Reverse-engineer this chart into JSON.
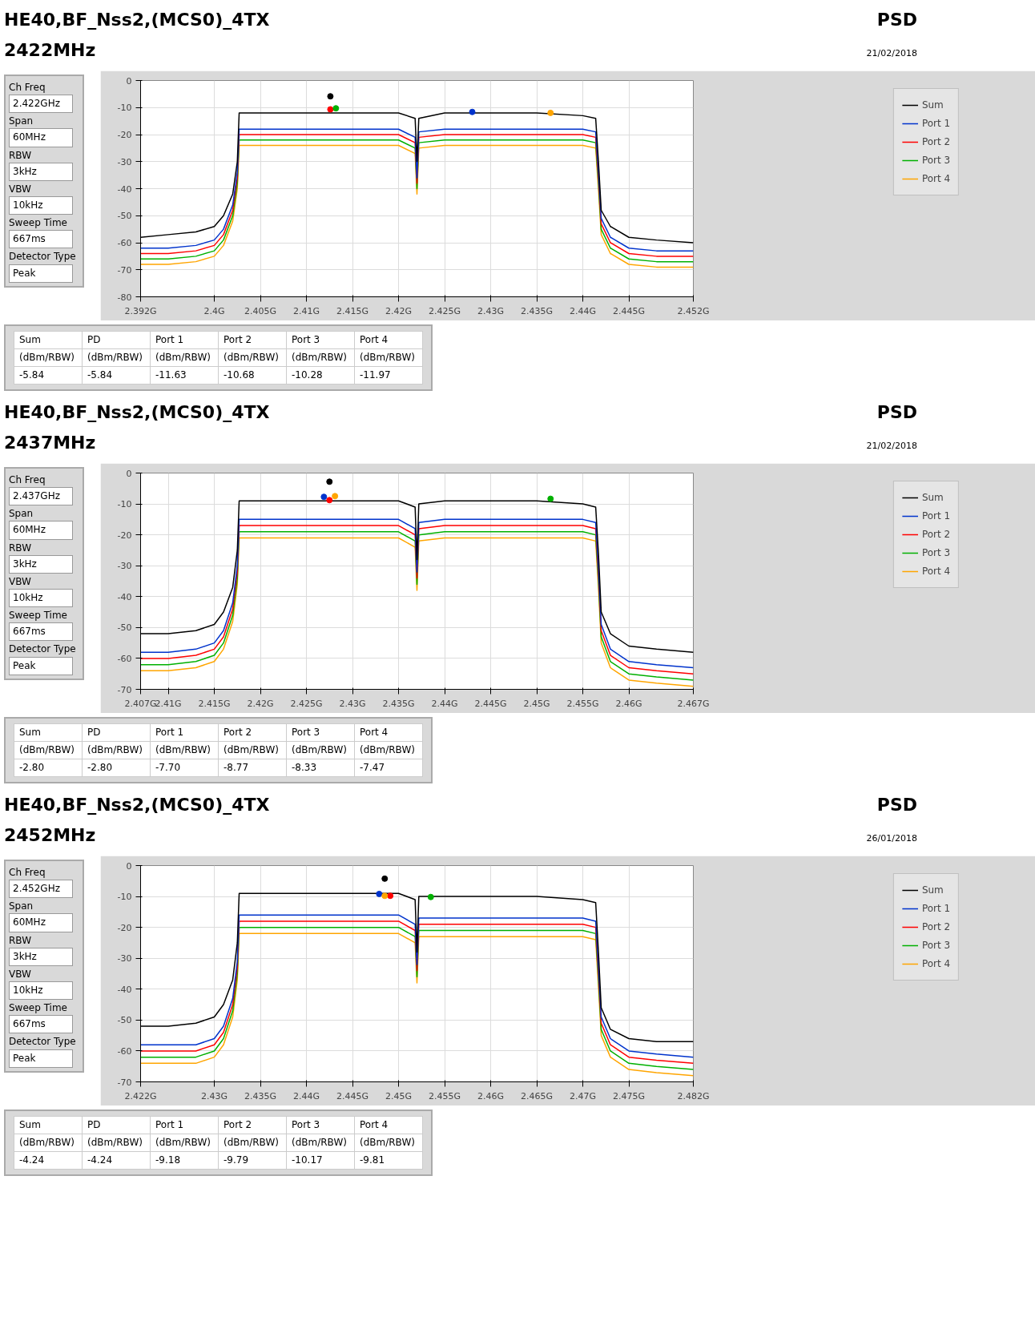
{
  "chart_data": [
    {
      "type": "line",
      "title": "HE40,BF_Nss2,(MCS0)_4TX",
      "subtitle": "2422MHz",
      "annotations": [
        "PSD",
        "21/02/2018",
        "Ch Freq",
        "2.422GHz",
        "Span",
        "60MHz",
        "RBW",
        "3kHz",
        "VBW",
        "10kHz",
        "Sweep Time",
        "667ms",
        "Detector Type",
        "Peak",
        "Sum",
        "PD",
        "Port 1",
        "Port 2",
        "Port 3",
        "Port 4",
        "(dBm/RBW)",
        "(dBm/RBW)",
        "(dBm/RBW)",
        "(dBm/RBW)",
        "(dBm/RBW)",
        "(dBm/RBW)",
        "-5.84",
        "-5.84",
        "-11.63",
        "-10.68",
        "-10.28",
        "-11.97"
      ],
      "xlim": [
        2.392,
        2.452
      ],
      "ylim": [
        -80,
        0
      ],
      "xticks": [
        {
          "value": 2.392,
          "label": "2.392G"
        },
        {
          "value": 2.4,
          "label": "2.4G"
        },
        {
          "value": 2.405,
          "label": "2.405G"
        },
        {
          "value": 2.41,
          "label": "2.41G"
        },
        {
          "value": 2.415,
          "label": "2.415G"
        },
        {
          "value": 2.42,
          "label": "2.42G"
        },
        {
          "value": 2.425,
          "label": "2.425G"
        },
        {
          "value": 2.43,
          "label": "2.43G"
        },
        {
          "value": 2.435,
          "label": "2.435G"
        },
        {
          "value": 2.44,
          "label": "2.44G"
        },
        {
          "value": 2.445,
          "label": "2.445G"
        },
        {
          "value": 2.452,
          "label": "2.452G"
        }
      ],
      "yticks": [
        0,
        -10,
        -20,
        -30,
        -40,
        -50,
        -60,
        -70,
        -80
      ],
      "grid": true,
      "legend": "right",
      "x": [
        2.392,
        2.395,
        2.398,
        2.4,
        2.401,
        2.402,
        2.4025,
        2.4027,
        2.405,
        2.41,
        2.415,
        2.42,
        2.4218,
        2.422,
        2.4222,
        2.425,
        2.43,
        2.435,
        2.44,
        2.4414,
        2.4417,
        2.442,
        2.443,
        2.445,
        2.448,
        2.452
      ],
      "series": [
        {
          "name": "Port 4",
          "color": "#ffa500",
          "values": [
            -68,
            -68,
            -67,
            -65,
            -61,
            -52,
            -40,
            -24,
            -24,
            -24,
            -24,
            -24,
            -27,
            -42,
            -25,
            -24,
            -24,
            -24,
            -24,
            -25,
            -40,
            -57,
            -64,
            -68,
            -69,
            -69
          ]
        },
        {
          "name": "Port 3",
          "color": "#00b000",
          "values": [
            -66,
            -66,
            -65,
            -63,
            -59,
            -50,
            -38,
            -22,
            -22,
            -22,
            -22,
            -22,
            -25,
            -40,
            -23,
            -22,
            -22,
            -22,
            -22,
            -23,
            -38,
            -55,
            -62,
            -66,
            -67,
            -67
          ]
        },
        {
          "name": "Port 2",
          "color": "#ff0000",
          "values": [
            -64,
            -64,
            -63,
            -61,
            -57,
            -48,
            -36,
            -20,
            -20,
            -20,
            -20,
            -20,
            -23,
            -38,
            -21,
            -20,
            -20,
            -20,
            -20,
            -21,
            -36,
            -53,
            -60,
            -64,
            -65,
            -65
          ]
        },
        {
          "name": "Port 1",
          "color": "#0033cc",
          "values": [
            -62,
            -62,
            -61,
            -59,
            -55,
            -46,
            -34,
            -18,
            -18,
            -18,
            -18,
            -18,
            -21,
            -36,
            -19,
            -18,
            -18,
            -18,
            -18,
            -19,
            -34,
            -51,
            -58,
            -62,
            -63,
            -63
          ]
        },
        {
          "name": "Sum",
          "color": "#000000",
          "values": [
            -58,
            -57,
            -56,
            -54,
            -50,
            -42,
            -30,
            -12,
            -12,
            -12,
            -12,
            -12,
            -14,
            -30,
            -14,
            -12,
            -12,
            -12,
            -13,
            -14,
            -30,
            -48,
            -54,
            -58,
            -59,
            -60
          ]
        },
        {
          "type": "scatter",
          "marker": "circle",
          "x": [
            2.4126,
            2.428,
            2.4126,
            2.4132,
            2.4365
          ],
          "values": [
            -5.84,
            -11.63,
            -10.68,
            -10.28,
            -11.97
          ],
          "colors": [
            "#000000",
            "#0033cc",
            "#ff0000",
            "#00b000",
            "#ffa500"
          ]
        }
      ]
    },
    {
      "type": "line",
      "title": "HE40,BF_Nss2,(MCS0)_4TX",
      "subtitle": "2437MHz",
      "annotations": [
        "PSD",
        "21/02/2018",
        "Ch Freq",
        "2.437GHz",
        "Span",
        "60MHz",
        "RBW",
        "3kHz",
        "VBW",
        "10kHz",
        "Sweep Time",
        "667ms",
        "Detector Type",
        "Peak",
        "Sum",
        "PD",
        "Port 1",
        "Port 2",
        "Port 3",
        "Port 4",
        "(dBm/RBW)",
        "(dBm/RBW)",
        "(dBm/RBW)",
        "(dBm/RBW)",
        "(dBm/RBW)",
        "(dBm/RBW)",
        "-2.80",
        "-2.80",
        "-7.70",
        "-8.77",
        "-8.33",
        "-7.47"
      ],
      "xlim": [
        2.407,
        2.467
      ],
      "ylim": [
        -70,
        0
      ],
      "xticks": [
        {
          "value": 2.407,
          "label": "2.407G"
        },
        {
          "value": 2.41,
          "label": "2.41G"
        },
        {
          "value": 2.415,
          "label": "2.415G"
        },
        {
          "value": 2.42,
          "label": "2.42G"
        },
        {
          "value": 2.425,
          "label": "2.425G"
        },
        {
          "value": 2.43,
          "label": "2.43G"
        },
        {
          "value": 2.435,
          "label": "2.435G"
        },
        {
          "value": 2.44,
          "label": "2.44G"
        },
        {
          "value": 2.445,
          "label": "2.445G"
        },
        {
          "value": 2.45,
          "label": "2.45G"
        },
        {
          "value": 2.455,
          "label": "2.455G"
        },
        {
          "value": 2.46,
          "label": "2.46G"
        },
        {
          "value": 2.467,
          "label": "2.467G"
        }
      ],
      "yticks": [
        0,
        -10,
        -20,
        -30,
        -40,
        -50,
        -60,
        -70
      ],
      "grid": true,
      "legend": "right",
      "x": [
        2.407,
        2.41,
        2.413,
        2.415,
        2.416,
        2.417,
        2.4175,
        2.4177,
        2.42,
        2.425,
        2.43,
        2.435,
        2.4368,
        2.437,
        2.4372,
        2.44,
        2.445,
        2.45,
        2.455,
        2.4564,
        2.4567,
        2.457,
        2.458,
        2.46,
        2.463,
        2.467
      ],
      "series": [
        {
          "name": "Port 4",
          "color": "#ffa500",
          "values": [
            -64,
            -64,
            -63,
            -61,
            -57,
            -48,
            -36,
            -21,
            -21,
            -21,
            -21,
            -21,
            -24,
            -38,
            -22,
            -21,
            -21,
            -21,
            -21,
            -22,
            -37,
            -55,
            -63,
            -67,
            -68,
            -69
          ]
        },
        {
          "name": "Port 3",
          "color": "#00b000",
          "values": [
            -62,
            -62,
            -61,
            -59,
            -55,
            -46,
            -34,
            -19,
            -19,
            -19,
            -19,
            -19,
            -22,
            -36,
            -20,
            -19,
            -19,
            -19,
            -19,
            -20,
            -35,
            -53,
            -61,
            -65,
            -66,
            -67
          ]
        },
        {
          "name": "Port 2",
          "color": "#ff0000",
          "values": [
            -60,
            -60,
            -59,
            -57,
            -53,
            -44,
            -32,
            -17,
            -17,
            -17,
            -17,
            -17,
            -20,
            -34,
            -18,
            -17,
            -17,
            -17,
            -17,
            -18,
            -33,
            -51,
            -59,
            -63,
            -64,
            -65
          ]
        },
        {
          "name": "Port 1",
          "color": "#0033cc",
          "values": [
            -58,
            -58,
            -57,
            -55,
            -51,
            -42,
            -30,
            -15,
            -15,
            -15,
            -15,
            -15,
            -18,
            -32,
            -16,
            -15,
            -15,
            -15,
            -15,
            -16,
            -31,
            -49,
            -57,
            -61,
            -62,
            -63
          ]
        },
        {
          "name": "Sum",
          "color": "#000000",
          "values": [
            -52,
            -52,
            -51,
            -49,
            -45,
            -37,
            -25,
            -9,
            -9,
            -9,
            -9,
            -9,
            -11,
            -28,
            -10,
            -9,
            -9,
            -9,
            -10,
            -11,
            -26,
            -45,
            -52,
            -56,
            -57,
            -58
          ]
        },
        {
          "type": "scatter",
          "marker": "circle",
          "x": [
            2.4275,
            2.4269,
            2.4275,
            2.4515,
            2.4281
          ],
          "values": [
            -2.8,
            -7.7,
            -8.77,
            -8.33,
            -7.47
          ],
          "colors": [
            "#000000",
            "#0033cc",
            "#ff0000",
            "#00b000",
            "#ffa500"
          ]
        }
      ]
    },
    {
      "type": "line",
      "title": "HE40,BF_Nss2,(MCS0)_4TX",
      "subtitle": "2452MHz",
      "annotations": [
        "PSD",
        "26/01/2018",
        "Ch Freq",
        "2.452GHz",
        "Span",
        "60MHz",
        "RBW",
        "3kHz",
        "VBW",
        "10kHz",
        "Sweep Time",
        "667ms",
        "Detector Type",
        "Peak",
        "Sum",
        "PD",
        "Port 1",
        "Port 2",
        "Port 3",
        "Port 4",
        "(dBm/RBW)",
        "(dBm/RBW)",
        "(dBm/RBW)",
        "(dBm/RBW)",
        "(dBm/RBW)",
        "(dBm/RBW)",
        "-4.24",
        "-4.24",
        "-9.18",
        "-9.79",
        "-10.17",
        "-9.81"
      ],
      "xlim": [
        2.422,
        2.482
      ],
      "ylim": [
        -70,
        0
      ],
      "xticks": [
        {
          "value": 2.422,
          "label": "2.422G"
        },
        {
          "value": 2.43,
          "label": "2.43G"
        },
        {
          "value": 2.435,
          "label": "2.435G"
        },
        {
          "value": 2.44,
          "label": "2.44G"
        },
        {
          "value": 2.445,
          "label": "2.445G"
        },
        {
          "value": 2.45,
          "label": "2.45G"
        },
        {
          "value": 2.455,
          "label": "2.455G"
        },
        {
          "value": 2.46,
          "label": "2.46G"
        },
        {
          "value": 2.465,
          "label": "2.465G"
        },
        {
          "value": 2.47,
          "label": "2.47G"
        },
        {
          "value": 2.475,
          "label": "2.475G"
        },
        {
          "value": 2.482,
          "label": "2.482G"
        }
      ],
      "yticks": [
        0,
        -10,
        -20,
        -30,
        -40,
        -50,
        -60,
        -70
      ],
      "grid": true,
      "legend": "right",
      "x": [
        2.422,
        2.425,
        2.428,
        2.43,
        2.431,
        2.432,
        2.4325,
        2.4327,
        2.435,
        2.44,
        2.445,
        2.45,
        2.4518,
        2.452,
        2.4522,
        2.455,
        2.46,
        2.465,
        2.47,
        2.4714,
        2.4717,
        2.472,
        2.473,
        2.475,
        2.478,
        2.482
      ],
      "series": [
        {
          "name": "Port 4",
          "color": "#ffa500",
          "values": [
            -64,
            -64,
            -64,
            -62,
            -58,
            -49,
            -37,
            -22,
            -22,
            -22,
            -22,
            -22,
            -25,
            -38,
            -23,
            -23,
            -23,
            -23,
            -23,
            -24,
            -39,
            -55,
            -62,
            -66,
            -67,
            -68
          ]
        },
        {
          "name": "Port 3",
          "color": "#00b000",
          "values": [
            -62,
            -62,
            -62,
            -60,
            -56,
            -47,
            -35,
            -20,
            -20,
            -20,
            -20,
            -20,
            -23,
            -36,
            -21,
            -21,
            -21,
            -21,
            -21,
            -22,
            -37,
            -53,
            -60,
            -64,
            -65,
            -66
          ]
        },
        {
          "name": "Port 2",
          "color": "#ff0000",
          "values": [
            -60,
            -60,
            -60,
            -58,
            -54,
            -45,
            -33,
            -18,
            -18,
            -18,
            -18,
            -18,
            -21,
            -34,
            -19,
            -19,
            -19,
            -19,
            -19,
            -20,
            -35,
            -51,
            -58,
            -62,
            -63,
            -64
          ]
        },
        {
          "name": "Port 1",
          "color": "#0033cc",
          "values": [
            -58,
            -58,
            -58,
            -56,
            -52,
            -43,
            -31,
            -16,
            -16,
            -16,
            -16,
            -16,
            -19,
            -32,
            -17,
            -17,
            -17,
            -17,
            -17,
            -18,
            -33,
            -49,
            -56,
            -60,
            -61,
            -62
          ]
        },
        {
          "name": "Sum",
          "color": "#000000",
          "values": [
            -52,
            -52,
            -51,
            -49,
            -45,
            -37,
            -25,
            -9,
            -9,
            -9,
            -9,
            -9,
            -11,
            -28,
            -10,
            -10,
            -10,
            -10,
            -11,
            -12,
            -28,
            -46,
            -53,
            -56,
            -57,
            -57
          ]
        },
        {
          "type": "scatter",
          "marker": "circle",
          "x": [
            2.4485,
            2.4479,
            2.4491,
            2.4535,
            2.4485
          ],
          "values": [
            -4.24,
            -9.18,
            -9.79,
            -10.17,
            -9.81
          ],
          "colors": [
            "#000000",
            "#0033cc",
            "#ff0000",
            "#00b000",
            "#ffa500"
          ]
        }
      ]
    }
  ]
}
